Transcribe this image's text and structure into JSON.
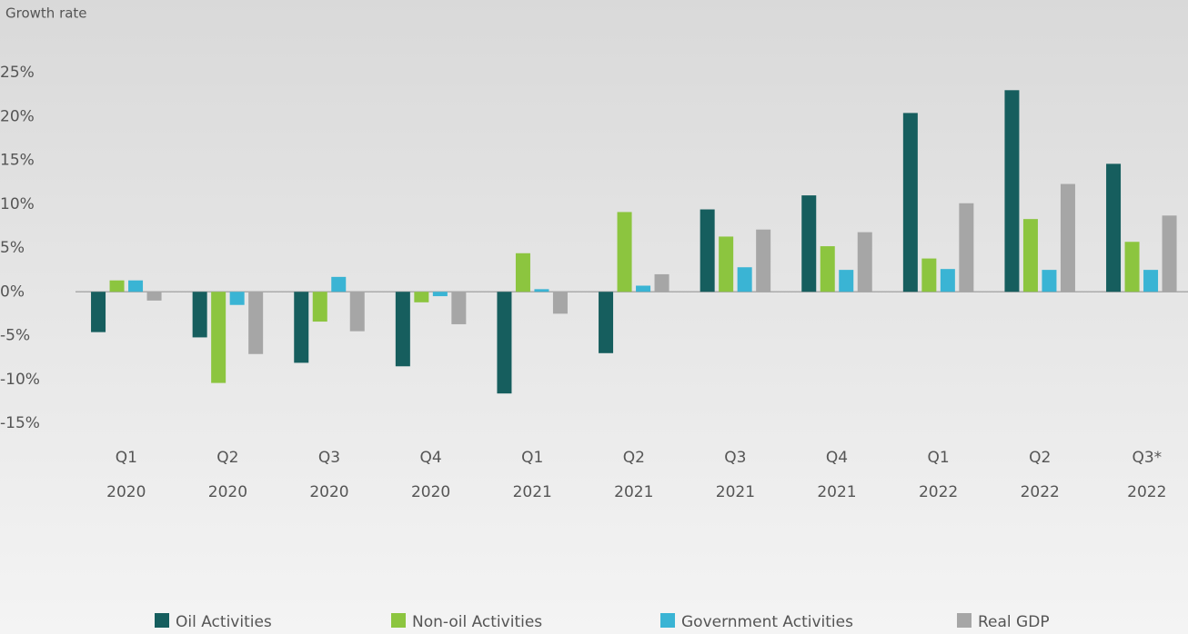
{
  "chart_data": {
    "type": "bar",
    "y_axis_label": "Growth rate",
    "categories": [
      [
        "Q1",
        "2020"
      ],
      [
        "Q2",
        "2020"
      ],
      [
        "Q3",
        "2020"
      ],
      [
        "Q4",
        "2020"
      ],
      [
        "Q1",
        "2021"
      ],
      [
        "Q2",
        "2021"
      ],
      [
        "Q3",
        "2021"
      ],
      [
        "Q4",
        "2021"
      ],
      [
        "Q1",
        "2022"
      ],
      [
        "Q2",
        "2022"
      ],
      [
        "Q3*",
        "2022"
      ]
    ],
    "series": [
      {
        "name": "Oil Activities",
        "color": "#165e5e",
        "values": [
          -4.6,
          -5.2,
          -8.1,
          -8.5,
          -11.6,
          -7.0,
          9.4,
          11.0,
          20.4,
          23.0,
          14.6
        ]
      },
      {
        "name": "Non-oil Activities",
        "color": "#8cc53f",
        "values": [
          1.3,
          -10.4,
          -3.4,
          -1.2,
          4.4,
          9.1,
          6.3,
          5.2,
          3.8,
          8.3,
          5.7
        ]
      },
      {
        "name": "Government Activities",
        "color": "#3ab4d4",
        "values": [
          1.3,
          -1.5,
          1.7,
          -0.5,
          0.3,
          0.7,
          2.8,
          2.5,
          2.6,
          2.5,
          2.5
        ]
      },
      {
        "name": "Real GDP",
        "color": "#a6a6a6",
        "values": [
          -1.0,
          -7.1,
          -4.5,
          -3.7,
          -2.5,
          2.0,
          7.1,
          6.8,
          10.1,
          12.3,
          8.7
        ]
      }
    ],
    "ylim": [
      -15,
      25
    ],
    "yticks": [
      {
        "value": -15,
        "label": "-15%"
      },
      {
        "value": -10,
        "label": "-10%"
      },
      {
        "value": -5,
        "label": "-5%"
      },
      {
        "value": 0,
        "label": "0%"
      },
      {
        "value": 5,
        "label": "5%"
      },
      {
        "value": 10,
        "label": "10%"
      },
      {
        "value": 15,
        "label": "15%"
      },
      {
        "value": 20,
        "label": "20%"
      },
      {
        "value": 25,
        "label": "25%"
      }
    ],
    "legend": "bottom"
  }
}
